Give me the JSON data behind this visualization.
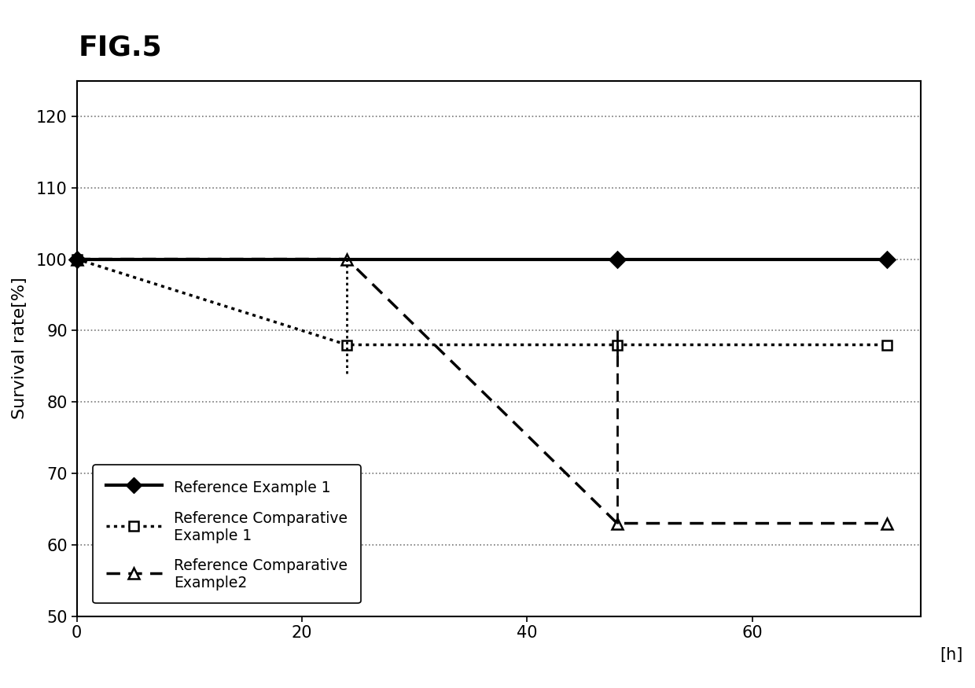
{
  "title": "FIG.5",
  "ylabel": "Survival rate[%]",
  "ylim": [
    50,
    125
  ],
  "xlim": [
    0,
    75
  ],
  "yticks": [
    50,
    60,
    70,
    80,
    90,
    100,
    110,
    120
  ],
  "xticks": [
    0,
    20,
    40,
    60
  ],
  "xlabel_right_label": "[h]",
  "xlabel_right_x": 75,
  "grid_color": "#777777",
  "series": [
    {
      "label": "Reference Example 1",
      "x": [
        0,
        48,
        72
      ],
      "y": [
        100,
        100,
        100
      ],
      "linestyle": "solid",
      "linewidth": 3.0,
      "color": "#000000",
      "marker": "D",
      "markersize": 10,
      "markerfacecolor": "#000000",
      "markeredgecolor": "#000000",
      "zorder": 5,
      "errorbars": []
    },
    {
      "label": "Reference Comparative\nExample 1",
      "x": [
        0,
        24,
        48,
        72
      ],
      "y": [
        100,
        88,
        88,
        88
      ],
      "linestyle": "dotted",
      "linewidth": 2.5,
      "color": "#000000",
      "marker": "s",
      "markersize": 9,
      "markerfacecolor": "#ffffff",
      "markeredgecolor": "#000000",
      "zorder": 4,
      "errorbars": [
        {
          "x": 24,
          "y_bottom": 84,
          "y_top": 100,
          "style": "dotted"
        },
        {
          "x": 48,
          "y_bottom": 85,
          "y_top": 90,
          "style": "solid"
        }
      ]
    },
    {
      "label": "Reference Comparative\nExample2",
      "x": [
        0,
        24,
        48,
        72
      ],
      "y": [
        100,
        100,
        63,
        63
      ],
      "linestyle": "dashed",
      "linewidth": 2.5,
      "color": "#000000",
      "marker": "^",
      "markersize": 10,
      "markerfacecolor": "#ffffff",
      "markeredgecolor": "#000000",
      "zorder": 3,
      "errorbars": [
        {
          "x": 48,
          "y_bottom": 63,
          "y_top": 88,
          "style": "dashed"
        }
      ]
    }
  ],
  "background_color": "#ffffff"
}
